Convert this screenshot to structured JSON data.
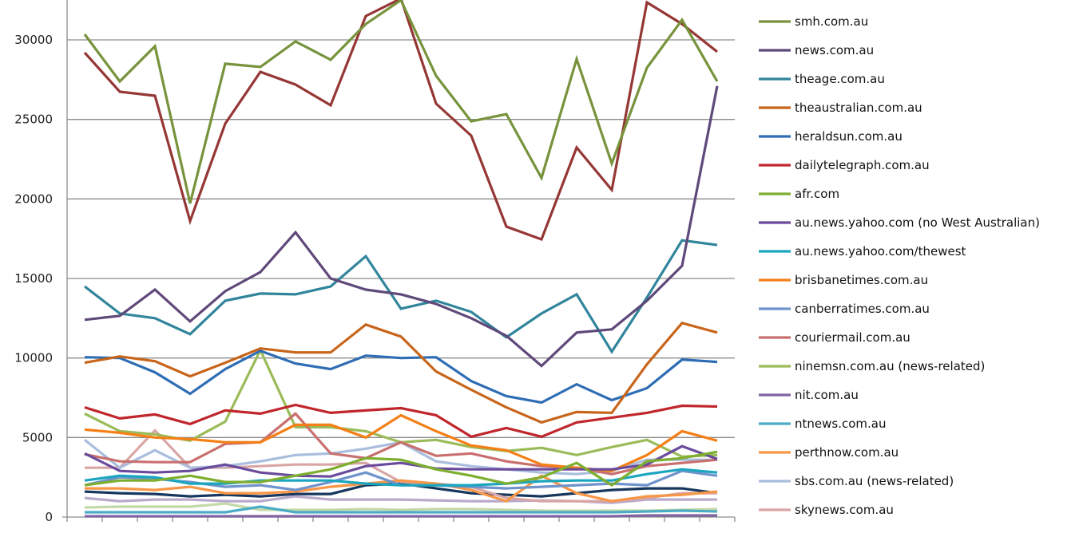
{
  "chart_data": {
    "type": "line",
    "title": "",
    "xlabel": "",
    "ylabel": "",
    "ylim": [
      0,
      32500
    ],
    "yticks": [
      0,
      5000,
      10000,
      15000,
      20000,
      25000,
      30000
    ],
    "ytick_labels": [
      "0",
      "5000",
      "10000",
      "15000",
      "20000",
      "25000",
      "30000"
    ],
    "point_count": 19,
    "grid": "horizontal",
    "legend_position": "right",
    "series": [
      {
        "name": "smh.com.au",
        "color": "#77933C",
        "values": [
          30350,
          27390,
          29600,
          19720,
          28500,
          28300,
          29900,
          28750,
          31000,
          32500,
          27740,
          24880,
          25330,
          21320,
          28800,
          22230,
          28250,
          31260,
          27390
        ]
      },
      {
        "name": "news.com.au",
        "color": "#5F497A",
        "values": [
          12400,
          12650,
          14300,
          12300,
          14200,
          15400,
          17900,
          15000,
          14300,
          14000,
          13400,
          12500,
          11400,
          9500,
          11600,
          11800,
          13600,
          15800,
          27100
        ]
      },
      {
        "name": "theage.com.au",
        "color": "#31859C",
        "values": [
          14500,
          12800,
          12500,
          11500,
          13600,
          14050,
          14000,
          14500,
          16400,
          13100,
          13600,
          12900,
          11300,
          12800,
          14000,
          10400,
          13800,
          17400,
          17100
        ]
      },
      {
        "name": "theaustralian.com.au",
        "color": "#C8651B",
        "values": [
          9700,
          10100,
          9800,
          8850,
          9700,
          10600,
          10350,
          10350,
          12100,
          11350,
          9150,
          8000,
          6900,
          5950,
          6600,
          6550,
          9600,
          12200,
          11600
        ]
      },
      {
        "name": "heraldsun.com.au",
        "color": "#2E6DB4",
        "values": [
          10050,
          10000,
          9100,
          7750,
          9300,
          10450,
          9650,
          9300,
          10150,
          10000,
          10050,
          8550,
          7600,
          7200,
          8350,
          7350,
          8100,
          9900,
          9750
        ]
      },
      {
        "name": "dailytelegraph.com.au",
        "color": "#C0262B",
        "values": [
          6900,
          6200,
          6450,
          5850,
          6700,
          6500,
          7050,
          6550,
          6700,
          6850,
          6400,
          5050,
          5600,
          5050,
          5950,
          6250,
          6550,
          7000,
          6950
        ]
      },
      {
        "name": "afr.com",
        "color": "#7EAE2E",
        "values": [
          2000,
          2300,
          2300,
          2600,
          2200,
          2200,
          2600,
          3000,
          3700,
          3600,
          3000,
          2600,
          2100,
          2500,
          3400,
          2000,
          3500,
          3700,
          4100
        ]
      },
      {
        "name": "au.news.yahoo.com  (no West Australian)",
        "color": "#6A4A9C",
        "values": [
          4000,
          2900,
          2800,
          2900,
          3300,
          2800,
          2600,
          2550,
          3200,
          3400,
          3050,
          3000,
          3000,
          3000,
          3000,
          3000,
          3300,
          4450,
          3650
        ]
      },
      {
        "name": "au.news.yahoo.com/thewest",
        "color": "#1BA6C0",
        "values": [
          2300,
          2600,
          2500,
          2100,
          2100,
          2300,
          2300,
          2300,
          2100,
          2000,
          2000,
          2000,
          2100,
          2250,
          2300,
          2300,
          2700,
          3000,
          2800
        ]
      },
      {
        "name": "brisbanetimes.com.au",
        "color": "#F47F17",
        "values": [
          5500,
          5300,
          5000,
          4900,
          4700,
          4700,
          5800,
          5800,
          5000,
          6400,
          5400,
          4500,
          4200,
          3300,
          3100,
          2900,
          3900,
          5400,
          4800
        ]
      },
      {
        "name": "canberratimes.com.au",
        "color": "#6F93CC",
        "values": [
          2000,
          2500,
          2400,
          2200,
          1900,
          2000,
          1700,
          2200,
          2800,
          2000,
          2000,
          1900,
          1800,
          1900,
          2000,
          2100,
          2000,
          2900,
          2600
        ]
      },
      {
        "name": "couriermail.com.au",
        "color": "#C96F6E",
        "values": [
          3950,
          3500,
          3450,
          3450,
          4600,
          4700,
          6500,
          4000,
          3700,
          4700,
          3850,
          4000,
          3500,
          3200,
          3100,
          2700,
          3200,
          3400,
          3600
        ]
      },
      {
        "name": "ninemsn.com.au (news-related)",
        "color": "#9BBB59",
        "values": [
          6500,
          5400,
          5200,
          4800,
          6000,
          10500,
          5650,
          5650,
          5400,
          4700,
          4850,
          4400,
          4150,
          4350,
          3900,
          4400,
          4850,
          3800,
          3900
        ]
      },
      {
        "name": "nit.com.au",
        "color": "#8064A2",
        "values": [
          50,
          50,
          50,
          50,
          50,
          50,
          50,
          50,
          50,
          50,
          50,
          50,
          50,
          50,
          50,
          50,
          100,
          100,
          100
        ]
      },
      {
        "name": "ntnews.com.au",
        "color": "#4BACC6",
        "values": [
          300,
          300,
          300,
          300,
          300,
          650,
          300,
          300,
          300,
          300,
          300,
          300,
          300,
          300,
          300,
          300,
          350,
          400,
          350
        ]
      },
      {
        "name": "perthnow.com.au",
        "color": "#F79646",
        "values": [
          1800,
          1800,
          1700,
          1900,
          1500,
          1500,
          1600,
          1900,
          2100,
          2300,
          2100,
          1700,
          1000,
          2600,
          1500,
          1000,
          1300,
          1400,
          1600
        ]
      },
      {
        "name": "sbs.com.au (news-related)",
        "color": "#A9BDDD",
        "values": [
          4850,
          3100,
          4200,
          3100,
          3200,
          3500,
          3900,
          4000,
          4300,
          4700,
          3500,
          3200,
          3000,
          2800,
          2700,
          2900,
          3600,
          3600,
          3600
        ]
      },
      {
        "name": "skynews.com.au",
        "color": "#D9A5A5",
        "values": [
          3100,
          3100,
          5450,
          3100,
          3100,
          3200,
          3300,
          3300,
          3400,
          2200,
          2100,
          1900,
          1200,
          1000,
          1000,
          1000,
          1200,
          1500,
          1500
        ]
      },
      {
        "color": "#953735",
        "values": [
          29200,
          26740,
          26490,
          18610,
          24730,
          27990,
          27190,
          25890,
          31500,
          32600,
          25990,
          23980,
          18260,
          17460,
          23230,
          20570,
          32360,
          31000,
          29250
        ]
      },
      {
        "color": "#17375E",
        "values": [
          1600,
          1500,
          1450,
          1300,
          1400,
          1300,
          1450,
          1450,
          2000,
          2100,
          1800,
          1500,
          1400,
          1300,
          1500,
          1700,
          1800,
          1800,
          1500
        ]
      },
      {
        "color": "#B9AACB",
        "values": [
          1200,
          1000,
          1100,
          1100,
          1000,
          1000,
          1300,
          1100,
          1100,
          1100,
          1050,
          1000,
          1000,
          1050,
          1000,
          900,
          1100,
          1100,
          1100
        ]
      },
      {
        "color": "#C4D9A8",
        "values": [
          600,
          650,
          650,
          650,
          850,
          450,
          450,
          450,
          500,
          450,
          500,
          500,
          450,
          400,
          400,
          400,
          400,
          450,
          500
        ]
      }
    ]
  }
}
